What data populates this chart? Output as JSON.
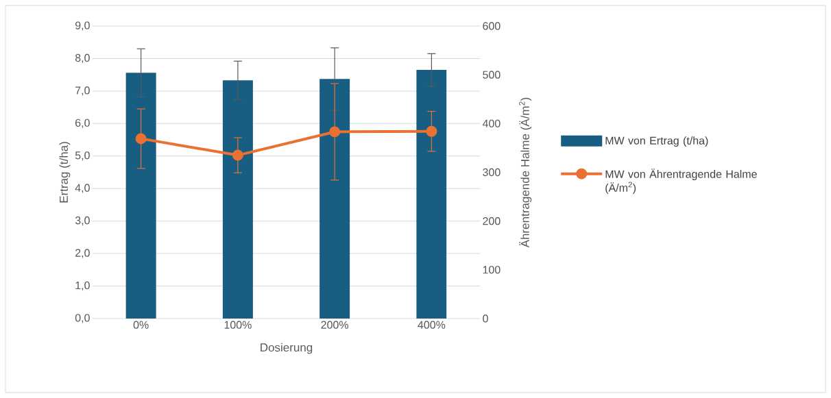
{
  "chart_data": {
    "type": "bar",
    "categories": [
      "0%",
      "100%",
      "200%",
      "400%"
    ],
    "xlabel": "Dosierung",
    "ylabel": "Ertrag (t/ha)",
    "y2label": "Ährentragende Halme (Ä/m$^{2}$)",
    "ylim": [
      0,
      9
    ],
    "yticks": [
      {
        "value": 0,
        "label": "0,0"
      },
      {
        "value": 1,
        "label": "1,0"
      },
      {
        "value": 2,
        "label": "2,0"
      },
      {
        "value": 3,
        "label": "3,0"
      },
      {
        "value": 4,
        "label": "4,0"
      },
      {
        "value": 5,
        "label": "5,0"
      },
      {
        "value": 6,
        "label": "6,0"
      },
      {
        "value": 7,
        "label": "7,0"
      },
      {
        "value": 8,
        "label": "8,0"
      },
      {
        "value": 9,
        "label": "9,0"
      }
    ],
    "y2lim": [
      0,
      600
    ],
    "y2ticks": [
      0,
      100,
      200,
      300,
      400,
      500,
      600
    ],
    "grid": "y",
    "legend": "right",
    "marker": "circle",
    "line_style": "solid",
    "series": [
      {
        "name": "MW von Ertrag (t/ha)",
        "color": "#175e82",
        "values": [
          7.56,
          7.33,
          7.37,
          7.65
        ],
        "errors": [
          0.74,
          0.59,
          0.96,
          0.5
        ]
      },
      {
        "name": "MW von Ährentragende Halme (Ä/m$^{2}$)",
        "type": "line",
        "axis": "y2",
        "color": "#e97132",
        "values": [
          369,
          335,
          383,
          384
        ],
        "errors": [
          61,
          36,
          99,
          41
        ]
      }
    ]
  }
}
